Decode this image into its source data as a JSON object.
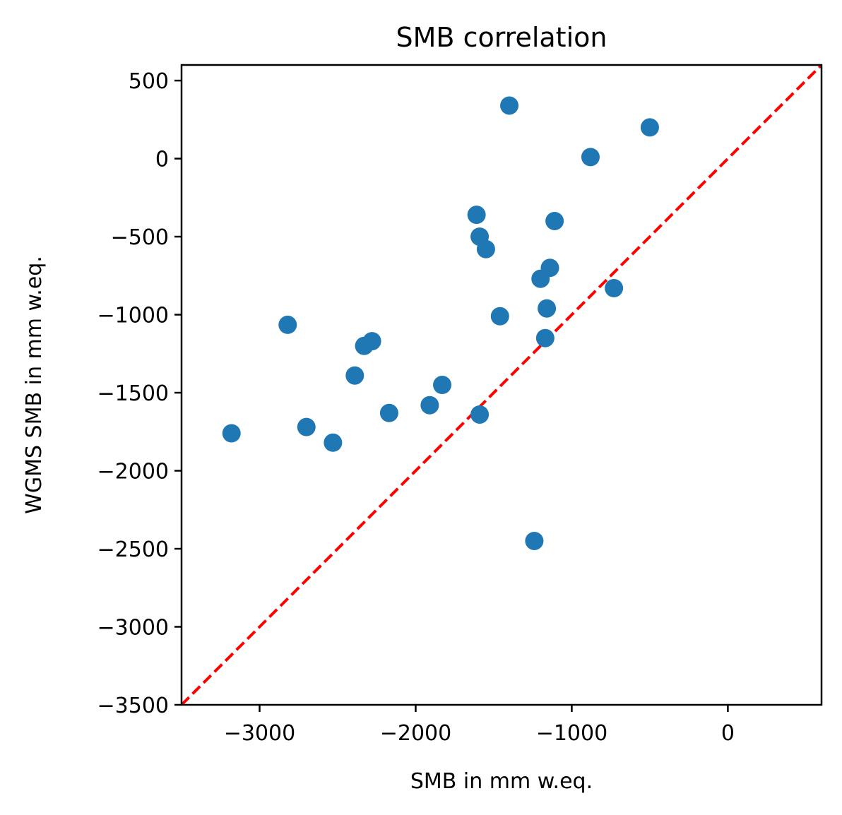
{
  "chart_data": {
    "type": "scatter",
    "title": "SMB correlation",
    "xlabel": "SMB in mm w.eq.",
    "ylabel": "WGMS SMB in mm w.eq.",
    "xlim": [
      -3500,
      600
    ],
    "ylim": [
      -3500,
      600
    ],
    "xticks": [
      -3000,
      -2000,
      -1000,
      0
    ],
    "xtick_labels": [
      "−3000",
      "−2000",
      "−1000",
      "0"
    ],
    "yticks": [
      -3500,
      -3000,
      -2500,
      -2000,
      -1500,
      -1000,
      -500,
      0,
      500
    ],
    "ytick_labels": [
      "−3500",
      "−3000",
      "−2500",
      "−2000",
      "−1500",
      "−1000",
      "−500",
      "0",
      "500"
    ],
    "grid": false,
    "marker_color": "#1f77b4",
    "reference_line": {
      "type": "identity",
      "style": "dashed",
      "color": "#ff0000",
      "from": [
        -3500,
        -3500
      ],
      "to": [
        600,
        600
      ]
    },
    "points": [
      {
        "x": -1400,
        "y": 340
      },
      {
        "x": -500,
        "y": 200
      },
      {
        "x": -880,
        "y": 10
      },
      {
        "x": -1610,
        "y": -360
      },
      {
        "x": -1590,
        "y": -500
      },
      {
        "x": -1110,
        "y": -400
      },
      {
        "x": -1550,
        "y": -580
      },
      {
        "x": -1140,
        "y": -700
      },
      {
        "x": -1200,
        "y": -770
      },
      {
        "x": -730,
        "y": -830
      },
      {
        "x": -1160,
        "y": -960
      },
      {
        "x": -1460,
        "y": -1010
      },
      {
        "x": -2820,
        "y": -1065
      },
      {
        "x": -2280,
        "y": -1170
      },
      {
        "x": -2330,
        "y": -1200
      },
      {
        "x": -1170,
        "y": -1150
      },
      {
        "x": -2390,
        "y": -1390
      },
      {
        "x": -1830,
        "y": -1450
      },
      {
        "x": -1910,
        "y": -1580
      },
      {
        "x": -2170,
        "y": -1630
      },
      {
        "x": -1590,
        "y": -1640
      },
      {
        "x": -3180,
        "y": -1760
      },
      {
        "x": -2700,
        "y": -1720
      },
      {
        "x": -2530,
        "y": -1820
      },
      {
        "x": -1240,
        "y": -2450
      }
    ]
  }
}
